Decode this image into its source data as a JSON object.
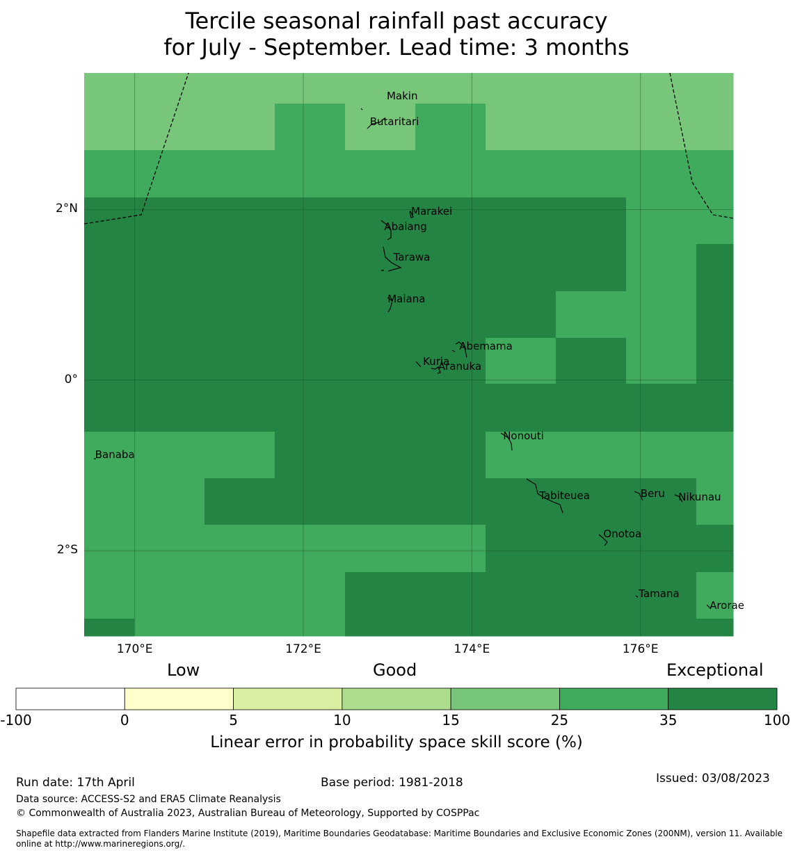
{
  "title": {
    "line1": "Tercile seasonal rainfall past accuracy",
    "line2": "for July - September. Lead time: 3 months"
  },
  "map": {
    "lon_range": [
      169.4,
      177.1
    ],
    "lat_range": [
      -3.0,
      3.6
    ],
    "x_ticks": [
      {
        "value": 170,
        "label": "170°E"
      },
      {
        "value": 172,
        "label": "172°E"
      },
      {
        "value": 174,
        "label": "174°E"
      },
      {
        "value": 176,
        "label": "176°E"
      }
    ],
    "y_ticks": [
      {
        "value": 2,
        "label": "2°N"
      },
      {
        "value": 0,
        "label": "0°"
      },
      {
        "value": -2,
        "label": "2°S"
      }
    ],
    "grid": true,
    "colors": {
      "band_15_25": "#78c679",
      "band_25_35": "#41ab5d",
      "band_35_100": "#238443",
      "gridline": "#1a4d2a"
    },
    "islands": [
      {
        "name": "Makin",
        "lon": 172.99,
        "lat": 3.33
      },
      {
        "name": "Butaritari",
        "lon": 172.79,
        "lat": 3.03
      },
      {
        "name": "Marakei",
        "lon": 173.28,
        "lat": 1.98
      },
      {
        "name": "Abaiang",
        "lon": 172.96,
        "lat": 1.8
      },
      {
        "name": "Tarawa",
        "lon": 173.07,
        "lat": 1.44
      },
      {
        "name": "Maiana",
        "lon": 173.0,
        "lat": 0.95
      },
      {
        "name": "Abemama",
        "lon": 173.85,
        "lat": 0.4
      },
      {
        "name": "Kuria",
        "lon": 173.42,
        "lat": 0.22
      },
      {
        "name": "Aranuka",
        "lon": 173.6,
        "lat": 0.16
      },
      {
        "name": "Banaba",
        "lon": 169.53,
        "lat": -0.87
      },
      {
        "name": "Nonouti",
        "lon": 174.37,
        "lat": -0.65
      },
      {
        "name": "Tabiteuea",
        "lon": 174.8,
        "lat": -1.35
      },
      {
        "name": "Beru",
        "lon": 176.0,
        "lat": -1.33
      },
      {
        "name": "Nikunau",
        "lon": 176.45,
        "lat": -1.37
      },
      {
        "name": "Onotoa",
        "lon": 175.56,
        "lat": -1.8
      },
      {
        "name": "Tamana",
        "lon": 175.98,
        "lat": -2.5
      },
      {
        "name": "Arorae",
        "lon": 176.82,
        "lat": -2.64
      }
    ]
  },
  "colorbar": {
    "categories": [
      "Low",
      "Good",
      "Exceptional"
    ],
    "bins": [
      {
        "from": -100,
        "to": 0,
        "color": "#ffffff"
      },
      {
        "from": 0,
        "to": 5,
        "color": "#ffffcc"
      },
      {
        "from": 5,
        "to": 10,
        "color": "#d9f0a3"
      },
      {
        "from": 10,
        "to": 15,
        "color": "#addd8e"
      },
      {
        "from": 15,
        "to": 25,
        "color": "#78c679"
      },
      {
        "from": 25,
        "to": 35,
        "color": "#41ab5d"
      },
      {
        "from": 35,
        "to": 100,
        "color": "#238443"
      }
    ],
    "tick_labels": [
      "-100",
      "0",
      "5",
      "10",
      "15",
      "25",
      "35",
      "100"
    ],
    "label": "Linear error in probability space skill score (%)"
  },
  "footer": {
    "run_date": "Run date: 17th April",
    "base_period": "Base period: 1981-2018",
    "issued": "Issued: 03/08/2023",
    "data_source": "Data source: ACCESS-S2 and ERA5 Climate Reanalysis",
    "copyright": "© Commonwealth of Australia 2023, Australian Bureau of Meteorology, Supported by COSPPac",
    "shapefile_line1": "Shapefile data extracted from Flanders Marine Institute (2019), Maritime Boundaries Geodatabase: Maritime Boundaries and Exclusive Economic Zones (200NM), version 11. Available",
    "shapefile_line2": "online at http://www.marineregions.org/."
  }
}
